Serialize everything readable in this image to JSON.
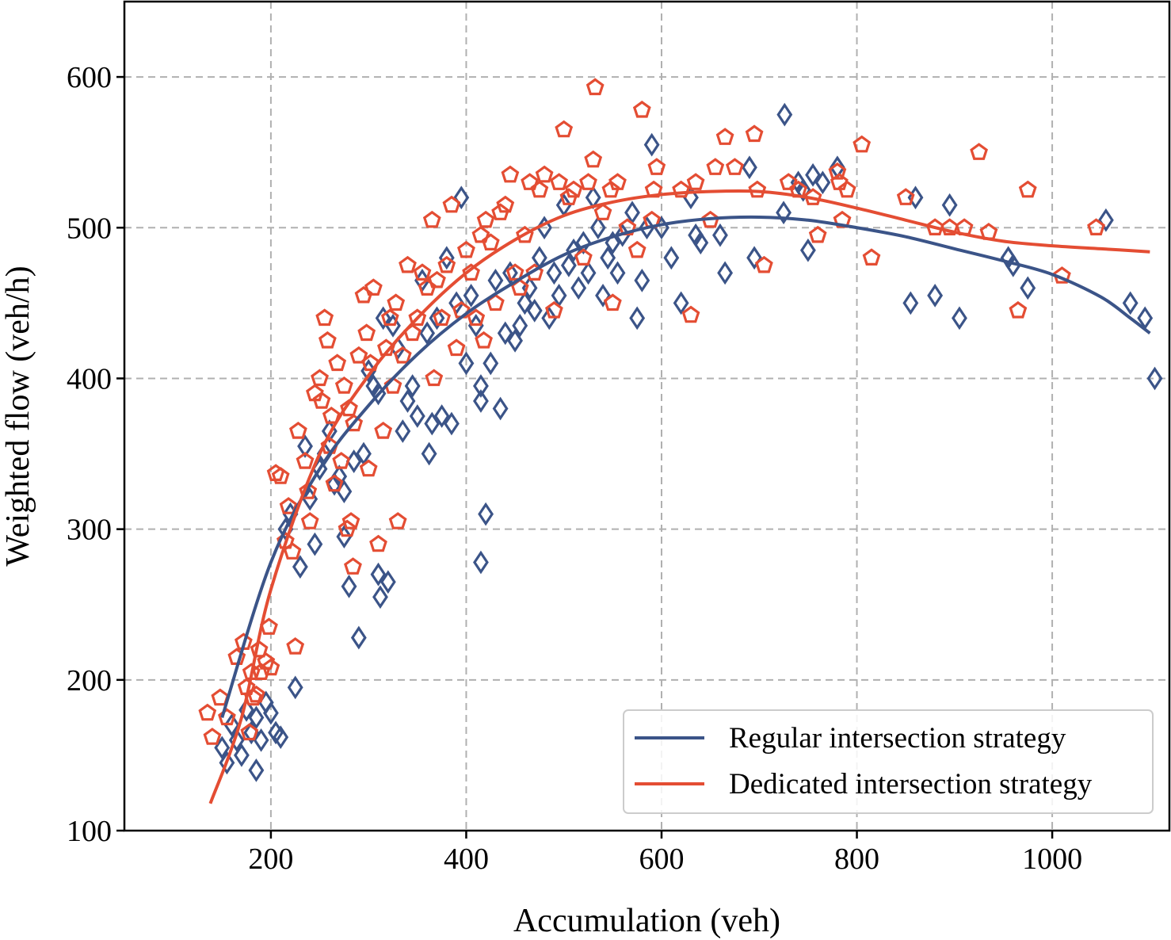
{
  "chart_data": {
    "type": "scatter",
    "title": "",
    "xlabel": "Accumulation (veh)",
    "ylabel": "Weighted flow (veh/h)",
    "xlim": [
      50,
      1120
    ],
    "ylim": [
      100,
      650
    ],
    "xticks": [
      200,
      400,
      600,
      800,
      1000
    ],
    "yticks": [
      100,
      200,
      300,
      400,
      500,
      600
    ],
    "xtick_labels": [
      "200",
      "400",
      "600",
      "800",
      "1000"
    ],
    "ytick_labels": [
      "100",
      "200",
      "300",
      "400",
      "500",
      "600"
    ],
    "grid": true,
    "legend_position": "bottom-right",
    "series": [
      {
        "name": "Regular intersection strategy",
        "marker": "diamond",
        "color": "#3b5488",
        "points": [
          [
            150,
            155
          ],
          [
            155,
            145
          ],
          [
            160,
            170
          ],
          [
            165,
            160
          ],
          [
            170,
            150
          ],
          [
            175,
            180
          ],
          [
            180,
            165
          ],
          [
            185,
            140
          ],
          [
            185,
            175
          ],
          [
            190,
            160
          ],
          [
            195,
            185
          ],
          [
            200,
            178
          ],
          [
            205,
            165
          ],
          [
            210,
            162
          ],
          [
            215,
            300
          ],
          [
            220,
            310
          ],
          [
            225,
            195
          ],
          [
            230,
            275
          ],
          [
            235,
            355
          ],
          [
            240,
            320
          ],
          [
            245,
            290
          ],
          [
            250,
            340
          ],
          [
            255,
            350
          ],
          [
            260,
            365
          ],
          [
            265,
            330
          ],
          [
            270,
            335
          ],
          [
            275,
            325
          ],
          [
            275,
            295
          ],
          [
            280,
            262
          ],
          [
            285,
            345
          ],
          [
            290,
            228
          ],
          [
            295,
            350
          ],
          [
            300,
            405
          ],
          [
            305,
            395
          ],
          [
            310,
            390
          ],
          [
            310,
            270
          ],
          [
            312,
            255
          ],
          [
            315,
            440
          ],
          [
            320,
            265
          ],
          [
            325,
            435
          ],
          [
            330,
            420
          ],
          [
            335,
            365
          ],
          [
            340,
            385
          ],
          [
            345,
            395
          ],
          [
            350,
            375
          ],
          [
            355,
            465
          ],
          [
            360,
            430
          ],
          [
            362,
            350
          ],
          [
            365,
            370
          ],
          [
            370,
            440
          ],
          [
            375,
            375
          ],
          [
            380,
            480
          ],
          [
            385,
            370
          ],
          [
            390,
            450
          ],
          [
            395,
            520
          ],
          [
            400,
            410
          ],
          [
            405,
            455
          ],
          [
            410,
            435
          ],
          [
            415,
            395
          ],
          [
            415,
            385
          ],
          [
            415,
            278
          ],
          [
            420,
            310
          ],
          [
            425,
            410
          ],
          [
            430,
            465
          ],
          [
            435,
            380
          ],
          [
            440,
            430
          ],
          [
            445,
            470
          ],
          [
            450,
            425
          ],
          [
            455,
            435
          ],
          [
            460,
            450
          ],
          [
            465,
            460
          ],
          [
            470,
            445
          ],
          [
            475,
            480
          ],
          [
            480,
            500
          ],
          [
            485,
            440
          ],
          [
            490,
            470
          ],
          [
            495,
            455
          ],
          [
            500,
            515
          ],
          [
            505,
            475
          ],
          [
            510,
            485
          ],
          [
            515,
            460
          ],
          [
            520,
            490
          ],
          [
            525,
            470
          ],
          [
            530,
            520
          ],
          [
            535,
            500
          ],
          [
            540,
            455
          ],
          [
            545,
            480
          ],
          [
            550,
            490
          ],
          [
            555,
            470
          ],
          [
            560,
            495
          ],
          [
            570,
            510
          ],
          [
            575,
            440
          ],
          [
            580,
            465
          ],
          [
            585,
            500
          ],
          [
            590,
            555
          ],
          [
            600,
            500
          ],
          [
            610,
            480
          ],
          [
            620,
            450
          ],
          [
            630,
            520
          ],
          [
            635,
            495
          ],
          [
            640,
            490
          ],
          [
            660,
            495
          ],
          [
            665,
            470
          ],
          [
            690,
            540
          ],
          [
            695,
            480
          ],
          [
            725,
            510
          ],
          [
            726,
            575
          ],
          [
            740,
            530
          ],
          [
            745,
            525
          ],
          [
            750,
            485
          ],
          [
            755,
            535
          ],
          [
            765,
            530
          ],
          [
            780,
            540
          ],
          [
            855,
            450
          ],
          [
            860,
            520
          ],
          [
            880,
            455
          ],
          [
            895,
            515
          ],
          [
            905,
            440
          ],
          [
            955,
            480
          ],
          [
            960,
            475
          ],
          [
            975,
            460
          ],
          [
            1055,
            505
          ],
          [
            1080,
            450
          ],
          [
            1095,
            440
          ],
          [
            1105,
            400
          ]
        ],
        "fit": [
          [
            150,
            175
          ],
          [
            200,
            278
          ],
          [
            250,
            340
          ],
          [
            300,
            382
          ],
          [
            350,
            416
          ],
          [
            400,
            443
          ],
          [
            450,
            464
          ],
          [
            500,
            482
          ],
          [
            550,
            494
          ],
          [
            600,
            502
          ],
          [
            650,
            506
          ],
          [
            700,
            507
          ],
          [
            750,
            505
          ],
          [
            800,
            500
          ],
          [
            850,
            494
          ],
          [
            900,
            486
          ],
          [
            950,
            478
          ],
          [
            1000,
            469
          ],
          [
            1050,
            454
          ],
          [
            1080,
            440
          ],
          [
            1100,
            430
          ]
        ]
      },
      {
        "name": "Dedicated intersection strategy",
        "marker": "pentagon",
        "color": "#e44d33",
        "points": [
          [
            135,
            178
          ],
          [
            140,
            162
          ],
          [
            148,
            188
          ],
          [
            155,
            175
          ],
          [
            165,
            215
          ],
          [
            172,
            225
          ],
          [
            175,
            195
          ],
          [
            178,
            165
          ],
          [
            180,
            205
          ],
          [
            182,
            188
          ],
          [
            185,
            190
          ],
          [
            188,
            220
          ],
          [
            190,
            205
          ],
          [
            195,
            212
          ],
          [
            198,
            235
          ],
          [
            200,
            208
          ],
          [
            205,
            337
          ],
          [
            210,
            335
          ],
          [
            215,
            292
          ],
          [
            218,
            315
          ],
          [
            222,
            285
          ],
          [
            225,
            222
          ],
          [
            228,
            365
          ],
          [
            235,
            345
          ],
          [
            238,
            325
          ],
          [
            240,
            305
          ],
          [
            245,
            390
          ],
          [
            250,
            400
          ],
          [
            252,
            385
          ],
          [
            255,
            440
          ],
          [
            258,
            425
          ],
          [
            260,
            355
          ],
          [
            262,
            375
          ],
          [
            265,
            330
          ],
          [
            268,
            410
          ],
          [
            272,
            345
          ],
          [
            275,
            395
          ],
          [
            278,
            300
          ],
          [
            280,
            380
          ],
          [
            282,
            305
          ],
          [
            284,
            275
          ],
          [
            285,
            370
          ],
          [
            290,
            415
          ],
          [
            295,
            455
          ],
          [
            298,
            430
          ],
          [
            300,
            340
          ],
          [
            302,
            410
          ],
          [
            305,
            460
          ],
          [
            310,
            290
          ],
          [
            315,
            365
          ],
          [
            318,
            420
          ],
          [
            322,
            440
          ],
          [
            325,
            395
          ],
          [
            328,
            450
          ],
          [
            330,
            305
          ],
          [
            335,
            415
          ],
          [
            340,
            475
          ],
          [
            345,
            430
          ],
          [
            350,
            440
          ],
          [
            355,
            470
          ],
          [
            360,
            460
          ],
          [
            365,
            505
          ],
          [
            367,
            400
          ],
          [
            370,
            465
          ],
          [
            375,
            440
          ],
          [
            380,
            475
          ],
          [
            385,
            515
          ],
          [
            390,
            420
          ],
          [
            395,
            445
          ],
          [
            400,
            485
          ],
          [
            405,
            470
          ],
          [
            410,
            440
          ],
          [
            415,
            495
          ],
          [
            418,
            425
          ],
          [
            420,
            505
          ],
          [
            425,
            490
          ],
          [
            430,
            450
          ],
          [
            435,
            510
          ],
          [
            440,
            515
          ],
          [
            445,
            535
          ],
          [
            450,
            470
          ],
          [
            455,
            460
          ],
          [
            460,
            495
          ],
          [
            465,
            530
          ],
          [
            470,
            470
          ],
          [
            475,
            525
          ],
          [
            480,
            535
          ],
          [
            490,
            445
          ],
          [
            495,
            530
          ],
          [
            500,
            565
          ],
          [
            505,
            520
          ],
          [
            510,
            525
          ],
          [
            520,
            480
          ],
          [
            525,
            530
          ],
          [
            530,
            545
          ],
          [
            532,
            593
          ],
          [
            540,
            510
          ],
          [
            548,
            525
          ],
          [
            550,
            450
          ],
          [
            555,
            530
          ],
          [
            565,
            500
          ],
          [
            575,
            485
          ],
          [
            580,
            578
          ],
          [
            590,
            505
          ],
          [
            592,
            525
          ],
          [
            595,
            540
          ],
          [
            620,
            525
          ],
          [
            630,
            442
          ],
          [
            635,
            530
          ],
          [
            650,
            505
          ],
          [
            655,
            540
          ],
          [
            665,
            560
          ],
          [
            675,
            540
          ],
          [
            695,
            562
          ],
          [
            698,
            525
          ],
          [
            705,
            475
          ],
          [
            730,
            530
          ],
          [
            740,
            525
          ],
          [
            755,
            520
          ],
          [
            760,
            495
          ],
          [
            780,
            537
          ],
          [
            782,
            530
          ],
          [
            785,
            505
          ],
          [
            790,
            525
          ],
          [
            805,
            555
          ],
          [
            815,
            480
          ],
          [
            850,
            520
          ],
          [
            880,
            500
          ],
          [
            895,
            500
          ],
          [
            910,
            500
          ],
          [
            925,
            550
          ],
          [
            935,
            497
          ],
          [
            965,
            445
          ],
          [
            975,
            525
          ],
          [
            1010,
            468
          ],
          [
            1045,
            500
          ]
        ],
        "fit": [
          [
            138,
            118
          ],
          [
            170,
            175
          ],
          [
            200,
            260
          ],
          [
            250,
            350
          ],
          [
            300,
            402
          ],
          [
            350,
            440
          ],
          [
            400,
            470
          ],
          [
            450,
            492
          ],
          [
            500,
            508
          ],
          [
            550,
            517
          ],
          [
            600,
            522
          ],
          [
            650,
            524
          ],
          [
            700,
            524
          ],
          [
            750,
            520
          ],
          [
            800,
            513
          ],
          [
            850,
            505
          ],
          [
            900,
            497
          ],
          [
            950,
            491
          ],
          [
            1000,
            488
          ],
          [
            1050,
            486
          ],
          [
            1100,
            484
          ]
        ]
      }
    ]
  }
}
